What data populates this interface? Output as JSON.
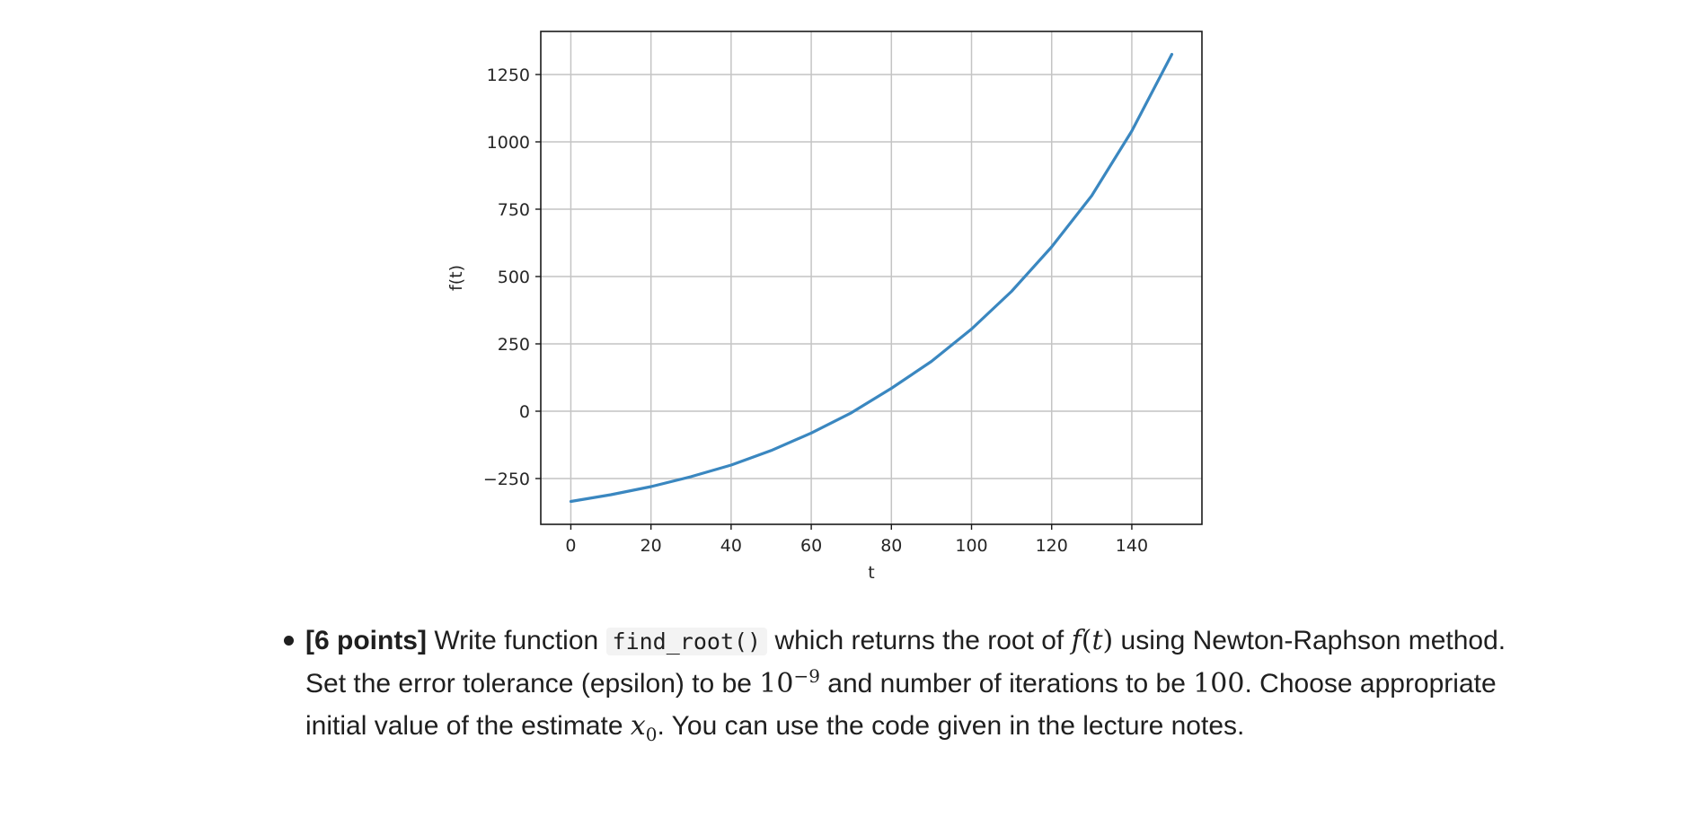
{
  "chart_data": {
    "type": "line",
    "xlabel": "t",
    "ylabel": "f(t)",
    "xlim": [
      -7.5,
      157.5
    ],
    "ylim": [
      -420,
      1410
    ],
    "xticks": [
      0,
      20,
      40,
      60,
      80,
      100,
      120,
      140
    ],
    "yticks": [
      -250,
      0,
      250,
      500,
      750,
      1000,
      1250
    ],
    "xtick_labels": [
      "0",
      "20",
      "40",
      "60",
      "80",
      "100",
      "120",
      "140"
    ],
    "ytick_labels": [
      "−250",
      "0",
      "250",
      "500",
      "750",
      "1000",
      "1250"
    ],
    "grid": true,
    "series": [
      {
        "color": "#3a87c0",
        "x": [
          0,
          10,
          20,
          30,
          40,
          50,
          60,
          70,
          80,
          90,
          100,
          110,
          120,
          130,
          140,
          150
        ],
        "y": [
          -335,
          -310,
          -280,
          -243,
          -200,
          -146,
          -81,
          -6,
          85,
          185,
          305,
          445,
          610,
          800,
          1040,
          1325
        ]
      }
    ]
  },
  "question": {
    "points": "[6 points]",
    "text_1": " Write function ",
    "code": "find_root()",
    "text_2": " which returns the root of ",
    "math_f": "f",
    "math_paren_open": "(",
    "math_t": "t",
    "math_paren_close": ")",
    "text_3": " using Newton-Raphson method. Set the error tolerance (epsilon) to be ",
    "math_base": "10",
    "math_exp": "−9",
    "text_4": " and number of iterations to be ",
    "math_iter": "100",
    "text_5": ". Choose appropriate initial value of the estimate ",
    "math_x": "x",
    "math_sub": "0",
    "text_6": ". You can use the code given in the lecture notes."
  }
}
